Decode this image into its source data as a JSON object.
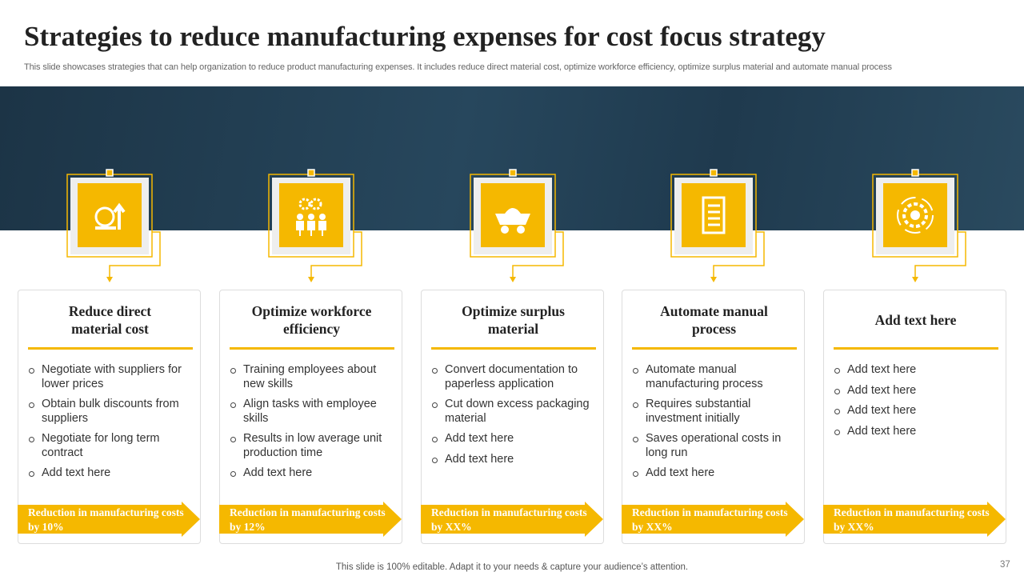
{
  "header": {
    "title": "Strategies to reduce manufacturing expenses for cost focus strategy",
    "subtitle": "This slide showcases strategies that can help organization to reduce product manufacturing expenses. It includes reduce direct material cost, optimize workforce efficiency, optimize surplus material and automate manual process"
  },
  "cards": [
    {
      "title": "Reduce direct material cost",
      "bullets": [
        "Negotiate with suppliers for lower prices",
        "Obtain bulk discounts from suppliers",
        "Negotiate for long term contract",
        "Add text here"
      ],
      "banner": "Reduction in manufacturing costs by 10%"
    },
    {
      "title": "Optimize workforce efficiency",
      "bullets": [
        "Training employees about new skills",
        "Align tasks with employee skills",
        "Results in low average unit production time",
        "Add text here"
      ],
      "banner": "Reduction in manufacturing costs by 12%"
    },
    {
      "title": "Optimize surplus material",
      "bullets": [
        "Convert documentation to paperless application",
        "Cut down excess packaging material",
        "Add text here",
        "Add text here"
      ],
      "banner": "Reduction in manufacturing costs by XX%"
    },
    {
      "title": "Automate manual process",
      "bullets": [
        "Automate manual manufacturing process",
        "Requires substantial investment initially",
        "Saves operational costs in long run",
        "Add text here"
      ],
      "banner": "Reduction in manufacturing costs by XX%"
    },
    {
      "title": "Add text here",
      "bullets": [
        "Add text here",
        "Add text here",
        "Add text here",
        "Add text here"
      ],
      "banner": "Reduction in manufacturing costs by XX%"
    }
  ],
  "footer": {
    "note": "This slide is 100% editable. Adapt it to your needs & capture your audience’s attention.",
    "page_number": "37"
  }
}
